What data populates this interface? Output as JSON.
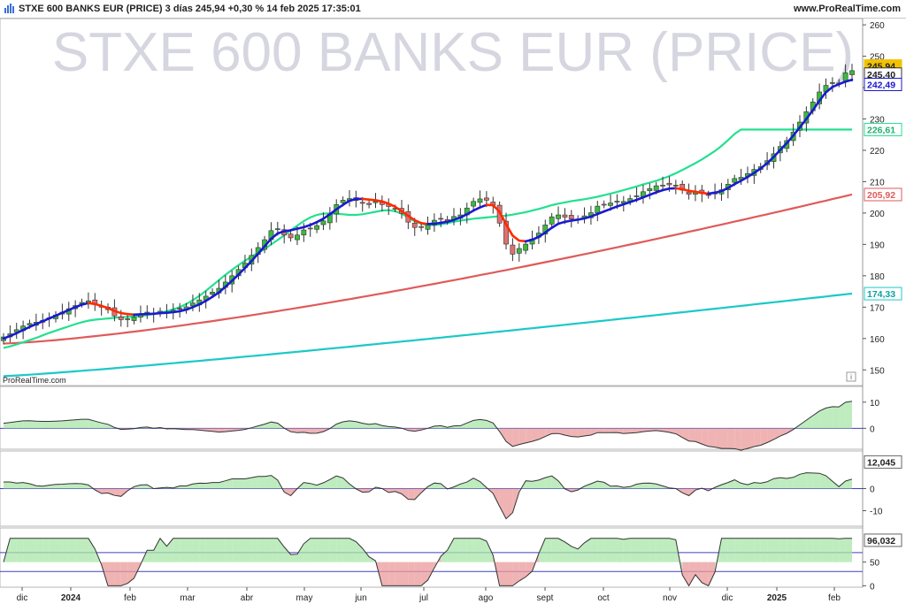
{
  "header": {
    "title": "STXE 600 BANKS EUR (PRICE) 3 días 245,94 +0,30 % 14 feb 2025 17:35:01",
    "site": "www.ProRealTime.com"
  },
  "watermark": "STXE 600 BANKS EUR (PRICE)",
  "brand_label": "ProRealTime.com",
  "info_icon": "i",
  "colors": {
    "up": "#3cba3c",
    "down": "#e07070",
    "ma_up": "#1a1ad0",
    "ma_down": "#ff2a00",
    "ma_mid": "#22e090",
    "ma_long": "#e05a5a",
    "ma_vlong": "#1cc8c8",
    "hline": "#4040c0"
  },
  "price_labels": {
    "last": "245,94",
    "close": "245,40",
    "ma_fast": "242,49",
    "ma_mid": "226,61",
    "ma_long": "205,92",
    "ma_vlong": "174,33"
  },
  "indicator_labels": {
    "osc2": "12,045",
    "osc3": "96,032"
  },
  "x_months": [
    "dic",
    "2024",
    "feb",
    "mar",
    "abr",
    "may",
    "jun",
    "jul",
    "ago",
    "sept",
    "oct",
    "nov",
    "dic",
    "2025",
    "feb"
  ],
  "chart_data": {
    "type": "line",
    "title": "STXE 600 BANKS EUR (PRICE)",
    "price_axis": {
      "ylim": [
        145,
        262
      ],
      "ticks": [
        150,
        160,
        170,
        180,
        190,
        200,
        210,
        220,
        230,
        240,
        250,
        260
      ]
    },
    "osc1_axis": {
      "ylim": [
        -8,
        16
      ],
      "ticks": [
        0,
        10
      ]
    },
    "osc2_axis": {
      "ylim": [
        -17,
        17
      ],
      "ticks": [
        -10,
        0
      ]
    },
    "osc3_axis": {
      "ylim": [
        -3,
        122
      ],
      "ticks": [
        0,
        50
      ]
    },
    "x_ticks": [
      "dic",
      "2024",
      "feb",
      "mar",
      "abr",
      "may",
      "jun",
      "jul",
      "ago",
      "sept",
      "oct",
      "nov",
      "dic",
      "2025",
      "feb"
    ],
    "price_close": [
      160.5,
      161.5,
      162.8,
      164,
      164.8,
      165.2,
      165.8,
      166.6,
      167.5,
      168.4,
      169.5,
      170.5,
      171.5,
      172,
      171,
      170,
      169.2,
      167.2,
      166,
      166.3,
      166.8,
      167.8,
      168.4,
      167.8,
      168.7,
      168.3,
      169,
      169.4,
      170.1,
      171.3,
      172.3,
      173.5,
      174.8,
      176,
      178,
      180,
      182,
      184,
      186.5,
      189,
      191.5,
      194.4,
      195,
      193,
      192.1,
      193,
      194.6,
      195.1,
      196,
      197.5,
      199.7,
      202.7,
      204.1,
      204.6,
      204,
      203.1,
      202.7,
      203.7,
      202.7,
      202.1,
      201.5,
      199.9,
      197.1,
      195.4,
      195.4,
      196.2,
      197.7,
      198.2,
      197.5,
      198.9,
      199.4,
      201.6,
      203.7,
      204.5,
      204.1,
      202.5,
      196.8,
      190.1,
      186.9,
      188.7,
      190.1,
      191.7,
      193.6,
      196.2,
      198.8,
      199.4,
      198.7,
      198.1,
      198.1,
      199.1,
      200.1,
      202.2,
      202.7,
      203.2,
      203.8,
      203.7,
      204.6,
      205.5,
      206.8,
      207.8,
      208.7,
      208.9,
      209,
      208.9,
      207.3,
      206,
      206.7,
      206.2,
      205.8,
      206.7,
      207.4,
      209.2,
      211,
      211.4,
      212.6,
      213.9,
      214.8,
      216.7,
      218.9,
      221.2,
      223.1,
      225.8,
      229,
      232.3,
      235.4,
      238.6,
      240.7,
      241.6,
      241.5,
      244.7,
      245.4
    ],
    "ma_fast": [
      160,
      160.8,
      161.7,
      162.7,
      163.7,
      164.6,
      165.5,
      166.4,
      167.3,
      168.2,
      169.1,
      170,
      170.8,
      171.3,
      171,
      170.4,
      169.7,
      168.8,
      168.1,
      167.8,
      167.6,
      167.7,
      167.8,
      167.9,
      168.1,
      168.2,
      168.4,
      168.7,
      169.2,
      170,
      170.9,
      172,
      173.3,
      174.7,
      176.5,
      178.4,
      180.4,
      182.5,
      184.7,
      187,
      189.4,
      191.8,
      193.5,
      194.2,
      194.5,
      195,
      195.5,
      196.2,
      197.1,
      198.2,
      199.6,
      201.2,
      202.6,
      203.9,
      204.5,
      204.5,
      204.3,
      204.1,
      203.7,
      203,
      202,
      200.6,
      199.1,
      197.7,
      196.8,
      196.5,
      196.6,
      196.9,
      197.2,
      197.8,
      198.6,
      199.6,
      200.8,
      201.8,
      202.6,
      202.5,
      200.4,
      196.4,
      192.8,
      191.2,
      191,
      191.5,
      192.4,
      193.8,
      195.3,
      196.6,
      197.2,
      197.6,
      197.9,
      198.3,
      198.9,
      199.7,
      200.5,
      201.3,
      202.1,
      202.8,
      203.5,
      204.2,
      205,
      205.8,
      206.6,
      207.3,
      207.8,
      207.9,
      207.6,
      207.1,
      206.8,
      206.4,
      206.2,
      206.5,
      207,
      208,
      209.2,
      210.3,
      211.5,
      212.8,
      214.2,
      215.9,
      217.9,
      220.1,
      222.3,
      224.7,
      227.3,
      230,
      232.8,
      235.8,
      238.5,
      240.2,
      241.1,
      241.9,
      242.49
    ],
    "ma_mid": [
      157,
      157.5,
      158.1,
      158.8,
      159.5,
      160.2,
      161,
      161.8,
      162.5,
      163.2,
      163.9,
      164.6,
      165.2,
      165.7,
      166,
      166.2,
      166.4,
      166.6,
      166.8,
      166.9,
      167,
      167.2,
      167.5,
      167.8,
      168.2,
      168.7,
      169.3,
      170,
      171,
      172.2,
      173.6,
      175.2,
      176.9,
      178.6,
      180.3,
      181.9,
      183.4,
      184.8,
      186.1,
      187.3,
      188.6,
      190,
      191.4,
      192.9,
      194.5,
      196,
      197.4,
      198.6,
      199.4,
      199.8,
      199.9,
      199.8,
      199.6,
      199.4,
      199.4,
      199.6,
      200,
      200.4,
      200.8,
      200.9,
      200.6,
      199.8,
      198.6,
      197.4,
      196.6,
      196.2,
      196.2,
      196.4,
      196.8,
      197.2,
      197.6,
      197.9,
      198.2,
      198.4,
      198.6,
      198.8,
      199,
      199.2,
      199.5,
      199.9,
      200.3,
      200.8,
      201.3,
      201.9,
      202.5,
      203,
      203.4,
      203.8,
      204.1,
      204.4,
      204.8,
      205.2,
      205.7,
      206.2,
      206.7,
      207.3,
      207.9,
      208.5,
      209.1,
      209.7,
      210.3,
      211,
      211.8,
      212.7,
      213.7,
      214.8,
      215.9,
      217.1,
      218.4,
      219.8,
      221.4,
      223.2,
      225.2,
      226.61,
      226.61,
      226.61,
      226.61,
      226.61,
      226.61,
      226.61,
      226.61,
      226.61,
      226.61,
      226.61,
      226.61,
      226.61,
      226.61,
      226.61,
      226.61,
      226.61,
      226.61
    ],
    "ma_long_range": [
      158.4,
      205.92
    ],
    "ma_vlong_range": [
      148,
      174.33
    ],
    "osc1_endpoints": {
      "start": 2,
      "end": 13
    },
    "osc2_endpoints": {
      "start": 3,
      "end": 12.045
    },
    "osc3_endpoints": {
      "start": 66,
      "end": 96.032
    },
    "osc3_levels": [
      70,
      30
    ]
  }
}
